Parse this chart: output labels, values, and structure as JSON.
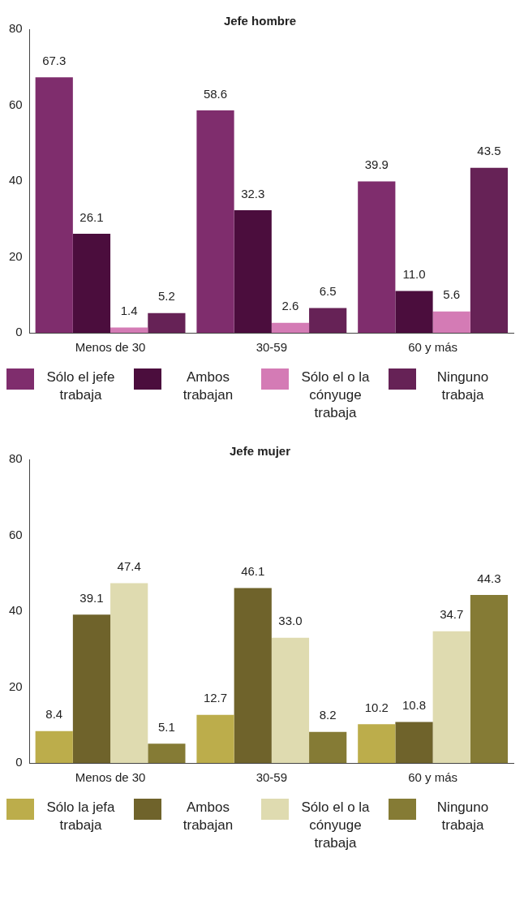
{
  "chart_data": [
    {
      "type": "bar",
      "title": "Jefe hombre",
      "categories": [
        "Menos de 30",
        "30-59",
        "60 y más"
      ],
      "ylim": [
        0,
        80
      ],
      "yticks": [
        0,
        20,
        40,
        60,
        80
      ],
      "grid": false,
      "legend": "bottom",
      "series": [
        {
          "name": "Sólo el jefe trabaja",
          "color": "#7f2d6d",
          "values": [
            67.3,
            58.6,
            39.9
          ],
          "value_labels": [
            "67.3",
            "58.6",
            "39.9"
          ]
        },
        {
          "name": "Ambos trabajan",
          "color": "#4b0d3d",
          "values": [
            26.1,
            32.3,
            11.0
          ],
          "value_labels": [
            "26.1",
            "32.3",
            "11.0"
          ]
        },
        {
          "name": "Sólo el o la cónyuge trabaja",
          "color": "#d47bb5",
          "values": [
            1.4,
            2.6,
            5.6
          ],
          "value_labels": [
            "1.4",
            "2.6",
            "5.6"
          ]
        },
        {
          "name": "Ninguno trabaja",
          "color": "#662256",
          "values": [
            5.2,
            6.5,
            43.5
          ],
          "value_labels": [
            "5.2",
            "6.5",
            "43.5"
          ]
        }
      ]
    },
    {
      "type": "bar",
      "title": "Jefe mujer",
      "categories": [
        "Menos de 30",
        "30-59",
        "60 y más"
      ],
      "ylim": [
        0,
        80
      ],
      "yticks": [
        0,
        20,
        40,
        60,
        80
      ],
      "grid": false,
      "legend": "bottom",
      "series": [
        {
          "name": "Sólo la jefa trabaja",
          "color": "#bcad4b",
          "values": [
            8.4,
            12.7,
            10.2
          ],
          "value_labels": [
            "8.4",
            "12.7",
            "10.2"
          ]
        },
        {
          "name": "Ambos trabajan",
          "color": "#6f632b",
          "values": [
            39.1,
            46.1,
            10.8
          ],
          "value_labels": [
            "39.1",
            "46.1",
            "10.8"
          ]
        },
        {
          "name": "Sólo el o la cónyuge trabaja",
          "color": "#dfdbb0",
          "values": [
            47.4,
            33.0,
            34.7
          ],
          "value_labels": [
            "47.4",
            "33.0",
            "34.7"
          ]
        },
        {
          "name": "Ninguno trabaja",
          "color": "#857b35",
          "values": [
            5.1,
            8.2,
            44.3
          ],
          "value_labels": [
            "5.1",
            "8.2",
            "44.3"
          ]
        }
      ]
    }
  ]
}
